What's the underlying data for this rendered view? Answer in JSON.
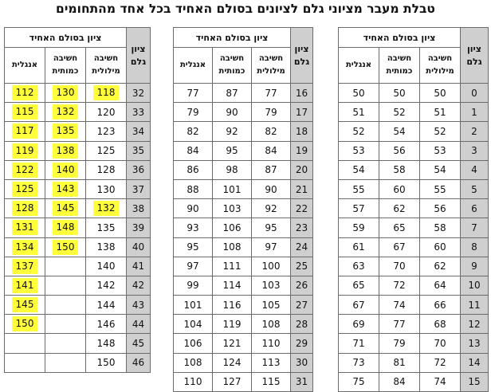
{
  "title": "טבלת מעבר מציוני גלם לציונים בסולם האחיד בכל אחד מהתחומים",
  "headers": {
    "gem": "ציון גלם",
    "group": "ציון בסולם האחיד",
    "verbal": "חשיבה מילולית",
    "quant": "חשיבה כמותית",
    "english": "אנגלית"
  },
  "highlight_color": "#ffff3b",
  "tables": [
    {
      "rows": [
        {
          "gem": "0",
          "v": "50",
          "q": "50",
          "e": "50"
        },
        {
          "gem": "1",
          "v": "51",
          "q": "52",
          "e": "51"
        },
        {
          "gem": "2",
          "v": "52",
          "q": "54",
          "e": "52"
        },
        {
          "gem": "3",
          "v": "53",
          "q": "56",
          "e": "53"
        },
        {
          "gem": "4",
          "v": "54",
          "q": "58",
          "e": "54"
        },
        {
          "gem": "5",
          "v": "55",
          "q": "60",
          "e": "55"
        },
        {
          "gem": "6",
          "v": "56",
          "q": "62",
          "e": "57"
        },
        {
          "gem": "7",
          "v": "58",
          "q": "65",
          "e": "59"
        },
        {
          "gem": "8",
          "v": "60",
          "q": "67",
          "e": "61"
        },
        {
          "gem": "9",
          "v": "62",
          "q": "70",
          "e": "63"
        },
        {
          "gem": "10",
          "v": "64",
          "q": "72",
          "e": "65"
        },
        {
          "gem": "11",
          "v": "66",
          "q": "74",
          "e": "67"
        },
        {
          "gem": "12",
          "v": "68",
          "q": "77",
          "e": "69"
        },
        {
          "gem": "13",
          "v": "70",
          "q": "79",
          "e": "71"
        },
        {
          "gem": "14",
          "v": "72",
          "q": "81",
          "e": "73"
        },
        {
          "gem": "15",
          "v": "74",
          "q": "84",
          "e": "75"
        }
      ]
    },
    {
      "rows": [
        {
          "gem": "16",
          "v": "77",
          "q": "87",
          "e": "77"
        },
        {
          "gem": "17",
          "v": "79",
          "q": "90",
          "e": "79"
        },
        {
          "gem": "18",
          "v": "82",
          "q": "92",
          "e": "82"
        },
        {
          "gem": "19",
          "v": "84",
          "q": "95",
          "e": "84"
        },
        {
          "gem": "20",
          "v": "87",
          "q": "98",
          "e": "86"
        },
        {
          "gem": "21",
          "v": "90",
          "q": "101",
          "e": "88"
        },
        {
          "gem": "22",
          "v": "92",
          "q": "103",
          "e": "90"
        },
        {
          "gem": "23",
          "v": "95",
          "q": "106",
          "e": "93"
        },
        {
          "gem": "24",
          "v": "97",
          "q": "108",
          "e": "95"
        },
        {
          "gem": "25",
          "v": "100",
          "q": "111",
          "e": "97"
        },
        {
          "gem": "26",
          "v": "103",
          "q": "114",
          "e": "99"
        },
        {
          "gem": "27",
          "v": "105",
          "q": "116",
          "e": "101"
        },
        {
          "gem": "28",
          "v": "108",
          "q": "119",
          "e": "104"
        },
        {
          "gem": "29",
          "v": "110",
          "q": "121",
          "e": "106"
        },
        {
          "gem": "30",
          "v": "113",
          "q": "124",
          "e": "108"
        },
        {
          "gem": "31",
          "v": "115",
          "q": "127",
          "e": "110"
        }
      ]
    },
    {
      "rows": [
        {
          "gem": "32",
          "v": "118",
          "q": "130",
          "e": "112",
          "hv": true,
          "hq": true,
          "he": true
        },
        {
          "gem": "33",
          "v": "120",
          "q": "132",
          "e": "115",
          "hq": true,
          "he": true
        },
        {
          "gem": "34",
          "v": "123",
          "q": "135",
          "e": "117",
          "hq": true,
          "he": true
        },
        {
          "gem": "35",
          "v": "125",
          "q": "138",
          "e": "119",
          "hq": true,
          "he": true
        },
        {
          "gem": "36",
          "v": "128",
          "q": "140",
          "e": "122",
          "hq": true,
          "he": true
        },
        {
          "gem": "37",
          "v": "130",
          "q": "143",
          "e": "125",
          "hq": true,
          "he": true
        },
        {
          "gem": "38",
          "v": "132",
          "q": "145",
          "e": "128",
          "hv": true,
          "hq": true,
          "he": true
        },
        {
          "gem": "39",
          "v": "135",
          "q": "148",
          "e": "131",
          "hq": true,
          "he": true
        },
        {
          "gem": "40",
          "v": "138",
          "q": "150",
          "e": "134",
          "hq": true,
          "he": true
        },
        {
          "gem": "41",
          "v": "140",
          "q": "",
          "e": "137",
          "he": true
        },
        {
          "gem": "42",
          "v": "142",
          "q": "",
          "e": "141",
          "he": true
        },
        {
          "gem": "43",
          "v": "144",
          "q": "",
          "e": "145",
          "he": true
        },
        {
          "gem": "44",
          "v": "146",
          "q": "",
          "e": "150",
          "he": true
        },
        {
          "gem": "45",
          "v": "148",
          "q": "",
          "e": ""
        },
        {
          "gem": "46",
          "v": "150",
          "q": "",
          "e": ""
        }
      ]
    }
  ]
}
